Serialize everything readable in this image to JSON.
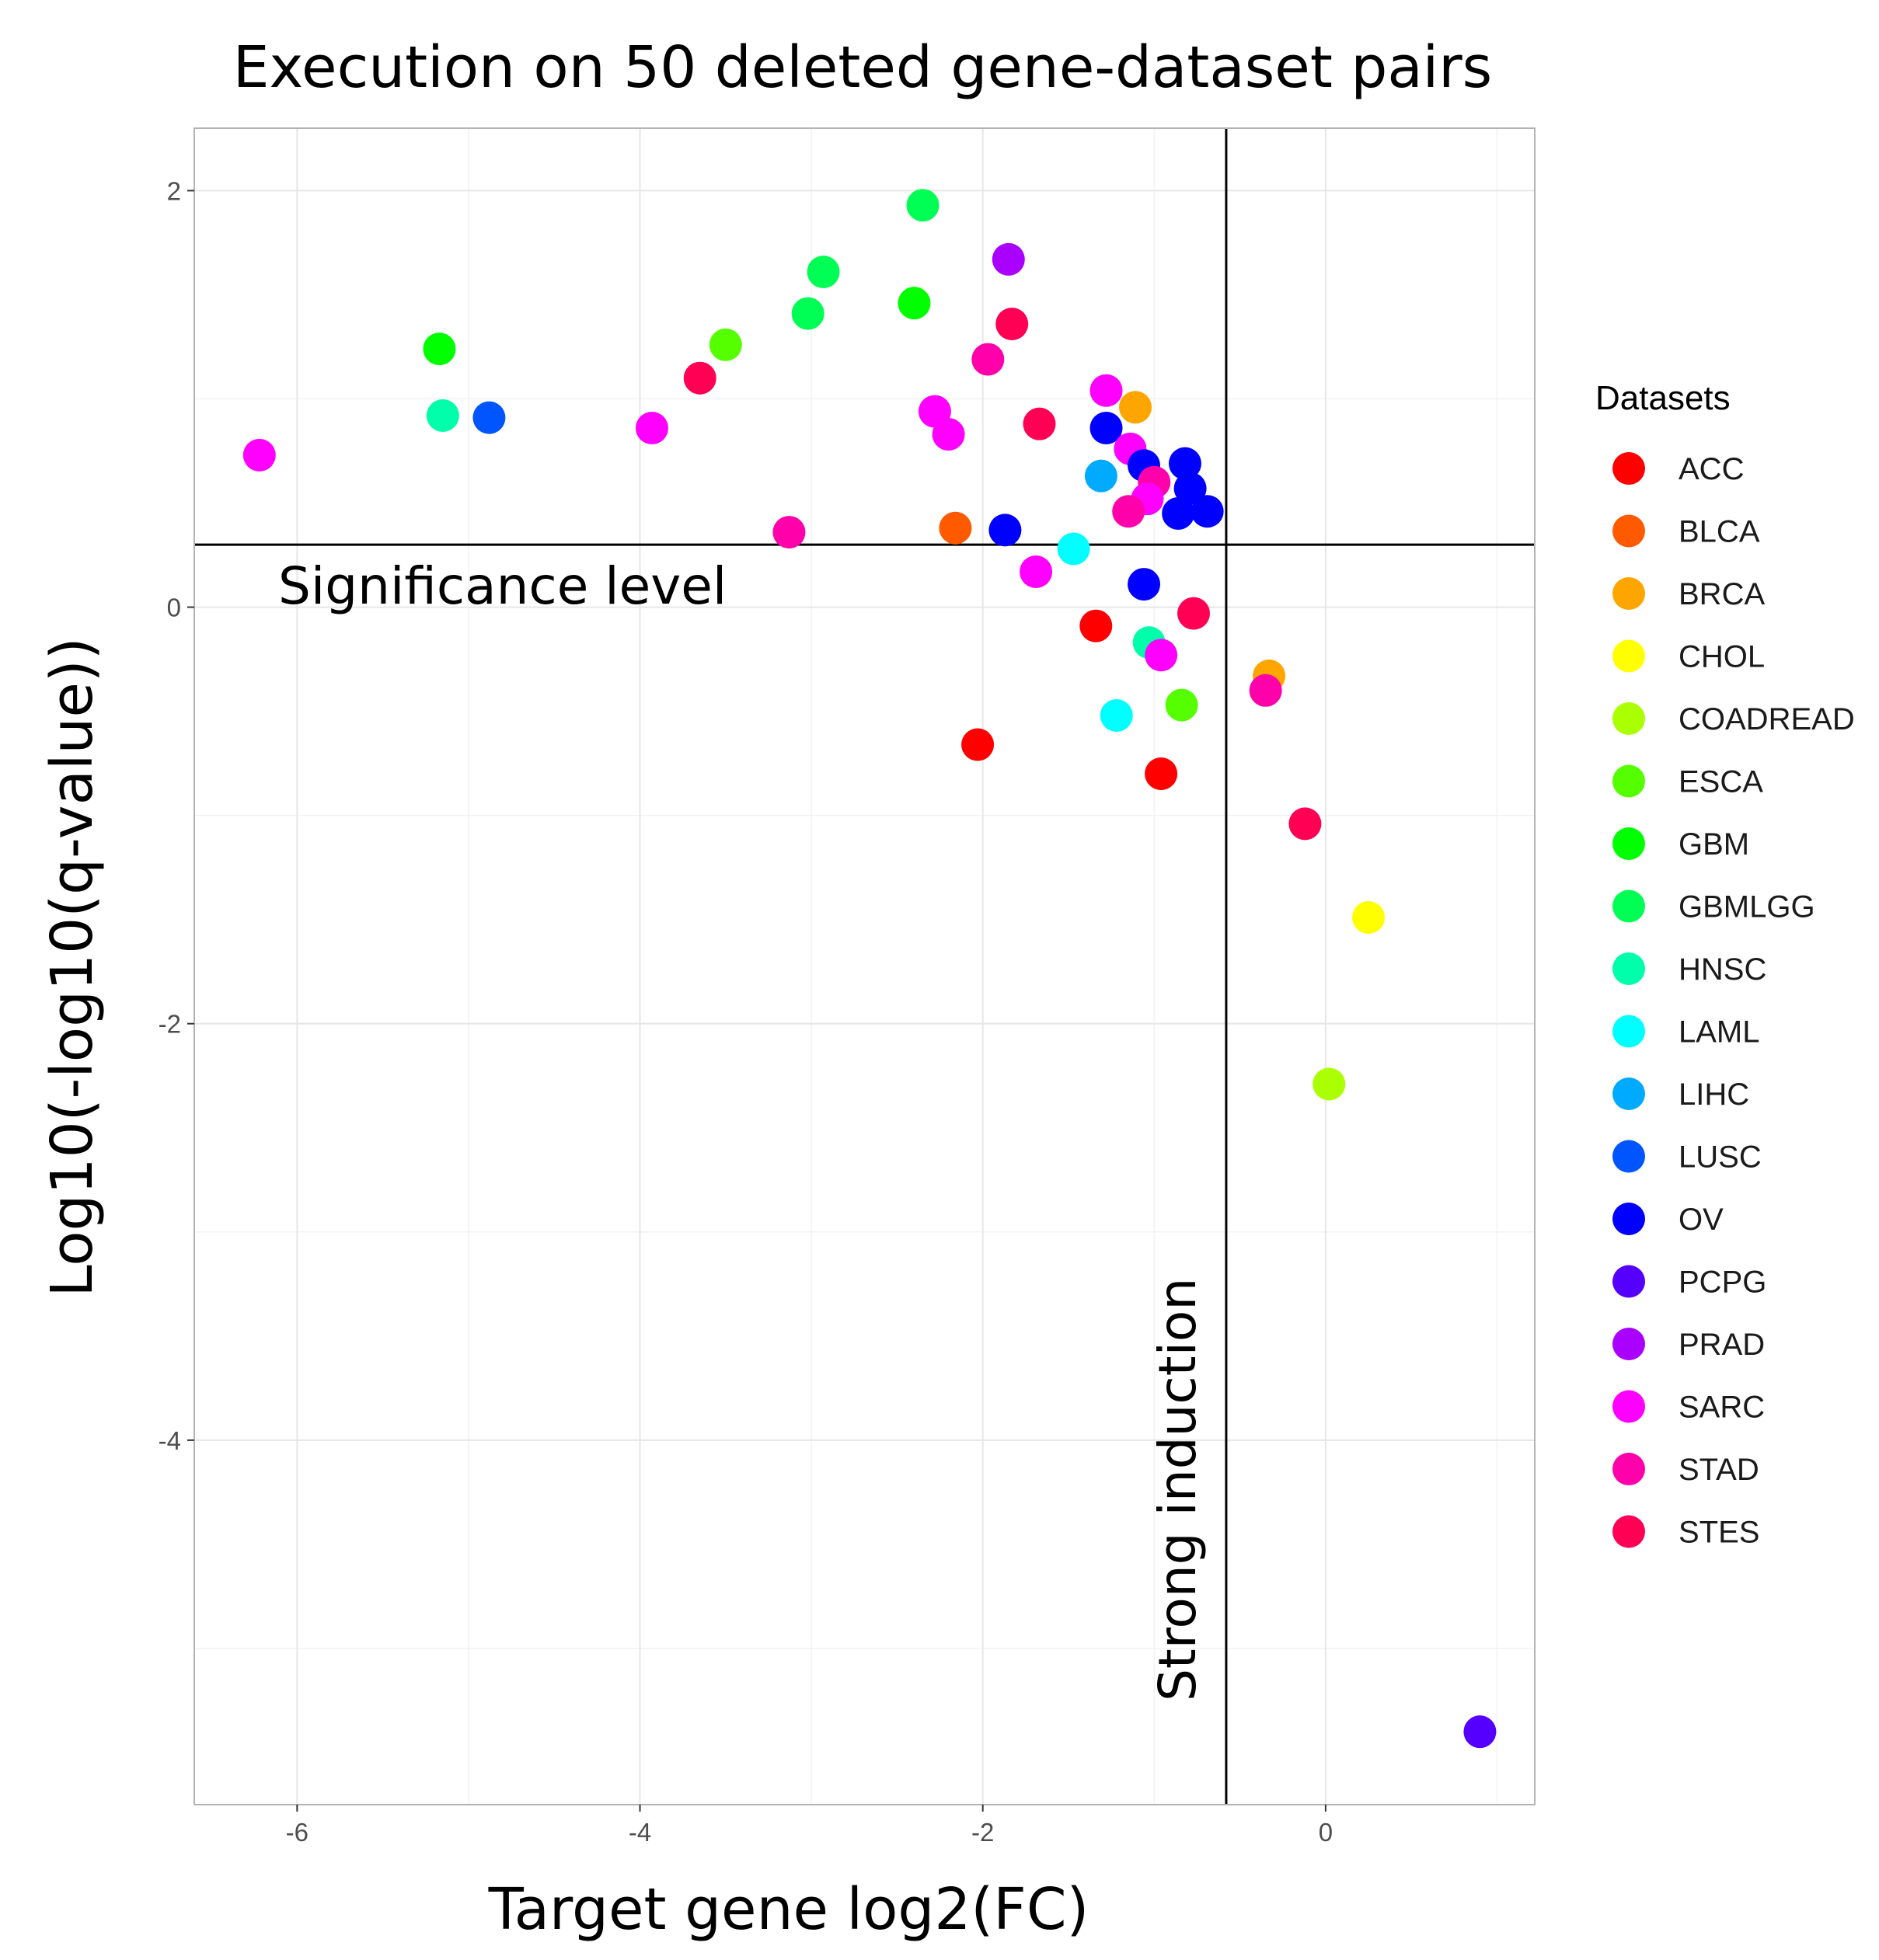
{
  "chart_data": {
    "type": "scatter",
    "title": "Execution on 50 deleted gene-dataset pairs",
    "xlabel": "Target gene log2(FC)",
    "ylabel": "Log10(-log10(q-value))",
    "xlim": [
      -6.6,
      1.22
    ],
    "ylim": [
      -5.75,
      2.3
    ],
    "xticks": [
      -6,
      -4,
      -2,
      0
    ],
    "yticks": [
      2,
      0,
      -2,
      -4
    ],
    "grid": true,
    "legend_title": "Datasets",
    "legend_position": "right",
    "annotations": {
      "significance_label": "Significance level",
      "significance_y": 0.3,
      "induction_label": "Strong induction",
      "induction_x": -0.58
    },
    "datasets": [
      {
        "name": "ACC",
        "color": "#FF0000"
      },
      {
        "name": "BLCA",
        "color": "#FF5A00"
      },
      {
        "name": "BRCA",
        "color": "#FFA500"
      },
      {
        "name": "CHOL",
        "color": "#FFFF00"
      },
      {
        "name": "COADREAD",
        "color": "#AAFF00"
      },
      {
        "name": "ESCA",
        "color": "#55FF00"
      },
      {
        "name": "GBM",
        "color": "#00FF00"
      },
      {
        "name": "GBMLGG",
        "color": "#00FF55"
      },
      {
        "name": "HNSC",
        "color": "#00FFAA"
      },
      {
        "name": "LAML",
        "color": "#00FFFF"
      },
      {
        "name": "LIHC",
        "color": "#00AAFF"
      },
      {
        "name": "LUSC",
        "color": "#0055FF"
      },
      {
        "name": "OV",
        "color": "#0000FF"
      },
      {
        "name": "PCPG",
        "color": "#5500FF"
      },
      {
        "name": "PRAD",
        "color": "#AA00FF"
      },
      {
        "name": "SARC",
        "color": "#FF00FF"
      },
      {
        "name": "STAD",
        "color": "#FF00AA"
      },
      {
        "name": "STES",
        "color": "#FF0055"
      }
    ],
    "points": [
      {
        "dataset": "GBMLGG",
        "x": -2.35,
        "y": 1.93
      },
      {
        "dataset": "PRAD",
        "x": -1.85,
        "y": 1.67
      },
      {
        "dataset": "GBMLGG",
        "x": -2.93,
        "y": 1.61
      },
      {
        "dataset": "GBM",
        "x": -2.4,
        "y": 1.46
      },
      {
        "dataset": "GBMLGG",
        "x": -3.02,
        "y": 1.41
      },
      {
        "dataset": "STES",
        "x": -1.83,
        "y": 1.36
      },
      {
        "dataset": "GBM",
        "x": -5.17,
        "y": 1.24
      },
      {
        "dataset": "ESCA",
        "x": -3.5,
        "y": 1.26
      },
      {
        "dataset": "STAD",
        "x": -1.97,
        "y": 1.19
      },
      {
        "dataset": "STES",
        "x": -3.65,
        "y": 1.1
      },
      {
        "dataset": "SARC",
        "x": -1.28,
        "y": 1.04
      },
      {
        "dataset": "BRCA",
        "x": -1.11,
        "y": 0.96
      },
      {
        "dataset": "HNSC",
        "x": -5.15,
        "y": 0.92
      },
      {
        "dataset": "LUSC",
        "x": -4.88,
        "y": 0.91
      },
      {
        "dataset": "SARC",
        "x": -2.28,
        "y": 0.94
      },
      {
        "dataset": "SARC",
        "x": -3.93,
        "y": 0.86
      },
      {
        "dataset": "STES",
        "x": -1.67,
        "y": 0.88
      },
      {
        "dataset": "OV",
        "x": -1.28,
        "y": 0.86
      },
      {
        "dataset": "SARC",
        "x": -2.2,
        "y": 0.83
      },
      {
        "dataset": "SARC",
        "x": -6.22,
        "y": 0.73
      },
      {
        "dataset": "SARC",
        "x": -1.14,
        "y": 0.76
      },
      {
        "dataset": "OV",
        "x": -0.82,
        "y": 0.69
      },
      {
        "dataset": "OV",
        "x": -1.06,
        "y": 0.68
      },
      {
        "dataset": "LIHC",
        "x": -1.31,
        "y": 0.63
      },
      {
        "dataset": "STAD",
        "x": -1.0,
        "y": 0.6
      },
      {
        "dataset": "OV",
        "x": -0.79,
        "y": 0.57
      },
      {
        "dataset": "SARC",
        "x": -1.04,
        "y": 0.52
      },
      {
        "dataset": "OV",
        "x": -0.86,
        "y": 0.45
      },
      {
        "dataset": "OV",
        "x": -0.69,
        "y": 0.46
      },
      {
        "dataset": "STAD",
        "x": -1.15,
        "y": 0.46
      },
      {
        "dataset": "BLCA",
        "x": -2.16,
        "y": 0.38
      },
      {
        "dataset": "OV",
        "x": -1.87,
        "y": 0.37
      },
      {
        "dataset": "STAD",
        "x": -3.13,
        "y": 0.36
      },
      {
        "dataset": "LAML",
        "x": -1.47,
        "y": 0.28
      },
      {
        "dataset": "SARC",
        "x": -1.69,
        "y": 0.17
      },
      {
        "dataset": "OV",
        "x": -1.06,
        "y": 0.11
      },
      {
        "dataset": "STES",
        "x": -0.77,
        "y": -0.03
      },
      {
        "dataset": "ACC",
        "x": -1.34,
        "y": -0.09
      },
      {
        "dataset": "HNSC",
        "x": -1.03,
        "y": -0.17
      },
      {
        "dataset": "SARC",
        "x": -0.96,
        "y": -0.23
      },
      {
        "dataset": "BRCA",
        "x": -0.33,
        "y": -0.33
      },
      {
        "dataset": "STAD",
        "x": -0.35,
        "y": -0.4
      },
      {
        "dataset": "ESCA",
        "x": -0.84,
        "y": -0.47
      },
      {
        "dataset": "LAML",
        "x": -1.22,
        "y": -0.52
      },
      {
        "dataset": "ACC",
        "x": -2.03,
        "y": -0.66
      },
      {
        "dataset": "ACC",
        "x": -0.96,
        "y": -0.8
      },
      {
        "dataset": "STES",
        "x": -0.12,
        "y": -1.04
      },
      {
        "dataset": "CHOL",
        "x": 0.25,
        "y": -1.49
      },
      {
        "dataset": "COADREAD",
        "x": 0.02,
        "y": -2.29
      },
      {
        "dataset": "PCPG",
        "x": 0.9,
        "y": -5.4
      }
    ]
  }
}
